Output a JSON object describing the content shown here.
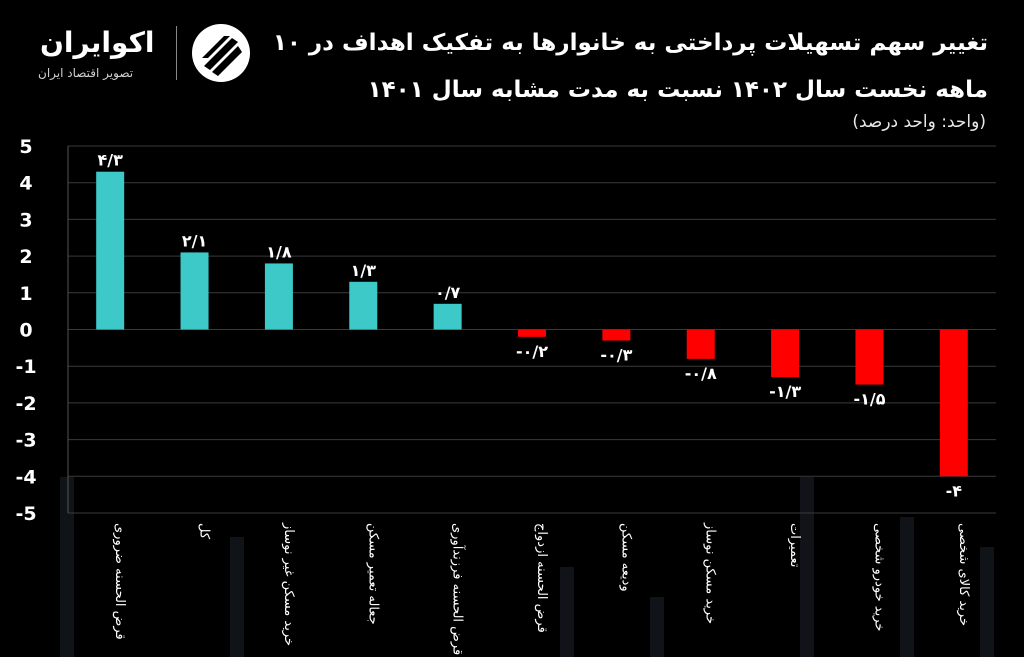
{
  "header": {
    "title_line1": "تغییر سهم تسهیلات پرداختی به خانوارها به تفکیک اهداف در ۱۰",
    "title_line2": "ماهه نخست سال ۱۴۰۲ نسبت به مدت مشابه سال ۱۴۰۱",
    "unit": "(واحد: واحد درصد)"
  },
  "logo": {
    "name": "اکوایران",
    "tagline": "تصویر اقتصاد ایران",
    "icon": "ecoiran-logo-icon"
  },
  "colors": {
    "positive": "#3ec9c9",
    "negative": "#ff0000",
    "background": "#000000",
    "grid": "#3a3a3a"
  },
  "chart_data": {
    "type": "bar",
    "categories": [
      "قرض الحسنه ضروری",
      "کل",
      "خرید مسکن غیر نوساز",
      "جعاله تعمیر مسکن",
      "قرض الحسنه فرزندآوری",
      "قرض الحسنه ازدواج",
      "ودیعه مسکن",
      "خرید مسکن نوساز",
      "تعمیرات",
      "خرید خودرو شخصی",
      "خرید کالای شخصی"
    ],
    "values": [
      4.3,
      2.1,
      1.8,
      1.3,
      0.7,
      -0.2,
      -0.3,
      -0.8,
      -1.3,
      -1.5,
      -4
    ],
    "data_labels": [
      "۴/۳",
      "۲/۱",
      "۱/۸",
      "۱/۳",
      "۰/۷",
      "-۰/۲",
      "-۰/۳",
      "-۰/۸",
      "-۱/۳",
      "-۱/۵",
      "-۴"
    ],
    "yticks": [
      "5",
      "4",
      "3",
      "2",
      "1",
      "0",
      "-1",
      "-2",
      "-3",
      "-4",
      "-5"
    ],
    "ylim": [
      -5,
      5
    ],
    "grid": true,
    "legend": "none"
  }
}
